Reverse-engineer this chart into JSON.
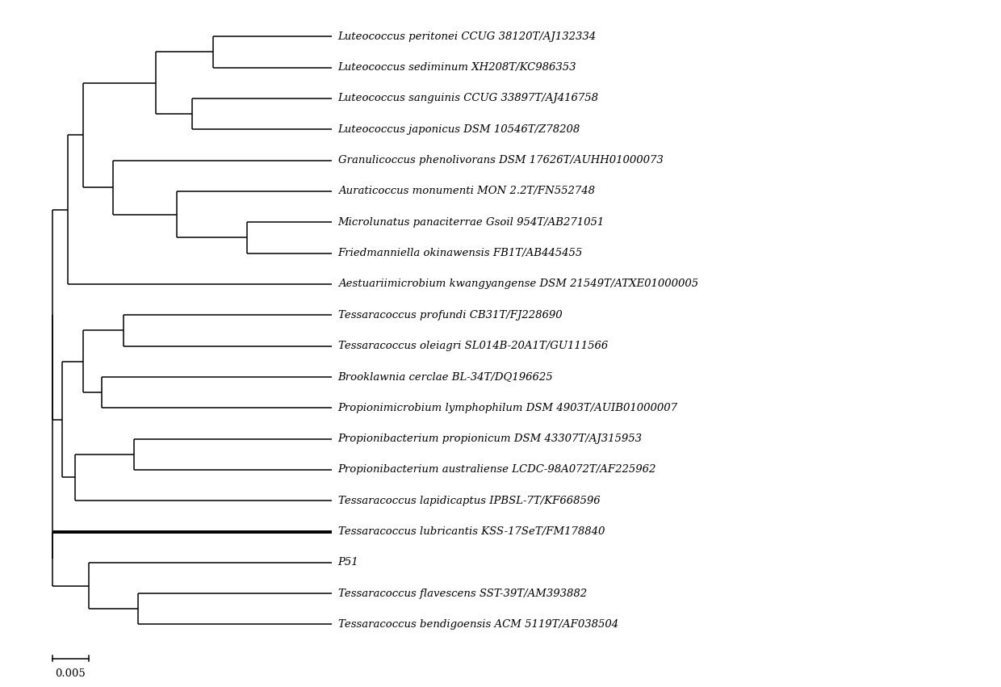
{
  "taxa": [
    "Luteococcus peritonei CCUG 38120T/AJ132334",
    "Luteococcus sediminum XH208T/KC986353",
    "Luteococcus sanguinis CCUG 33897T/AJ416758",
    "Luteococcus japonicus DSM 10546T/Z78208",
    "Granulicoccus phenolivorans DSM 17626T/AUHH01000073",
    "Auraticoccus monumenti MON 2.2T/FN552748",
    "Microlunatus panaciterrae Gsoil 954T/AB271051",
    "Friedmanniella okinawensis FB1T/AB445455",
    "Aestuariimicrobium kwangyangense DSM 21549T/ATXE01000005",
    "Tessaracoccus profundi CB31T/FJ228690",
    "Tessaracoccus oleiagri SL014B-20A1T/GU111566",
    "Brooklawnia cerclae BL-34T/DQ196625",
    "Propionimicrobium lymphophilum DSM 4903T/AUIB01000007",
    "Propionibacterium propionicum DSM 43307T/AJ315953",
    "Propionibacterium australiense LCDC-98A072T/AF225962",
    "Tessaracoccus lapidicaptus IPBSL-7T/KF668596",
    "Tessaracoccus lubricantis KSS-17SeT/FM178840",
    "P51",
    "Tessaracoccus flavescens SST-39T/AM393882",
    "Tessaracoccus bendigoensis ACM 5119T/AF038504"
  ],
  "background_color": "#ffffff",
  "line_color": "#000000",
  "text_color": "#000000",
  "scale_bar_value": "0.005",
  "font_size": 9.5,
  "bold_taxon_index": 16
}
